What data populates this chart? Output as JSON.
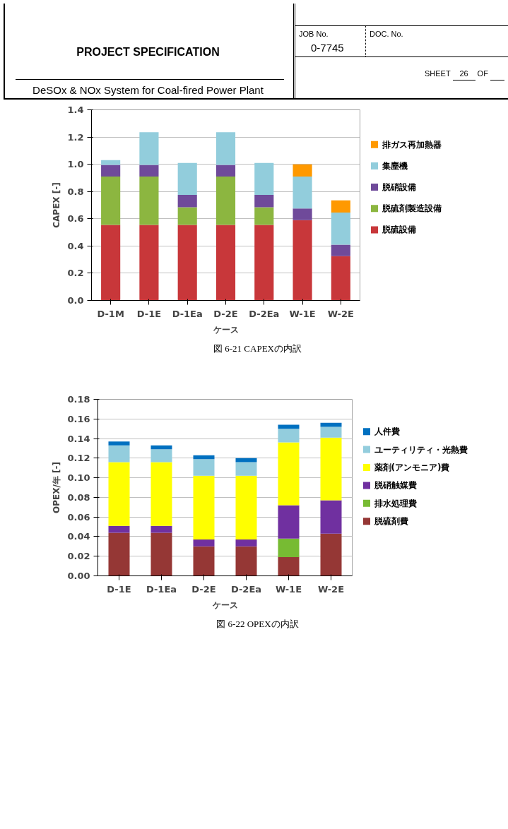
{
  "chart_data": [
    {
      "type": "bar",
      "stacked": true,
      "xlabel": "ケース",
      "ylabel": "CAPEX [-]",
      "categories": [
        "D-1M",
        "D-1E",
        "D-1Ea",
        "D-2E",
        "D-2Ea",
        "W-1E",
        "W-2E"
      ],
      "series": [
        {
          "name": "脱硫設備",
          "color": "#c8373a",
          "values": [
            0.555,
            0.555,
            0.555,
            0.555,
            0.555,
            0.59,
            0.325
          ]
        },
        {
          "name": "脱硫剤製造設備",
          "color": "#8cb640",
          "values": [
            0.355,
            0.355,
            0.13,
            0.355,
            0.13,
            null,
            null
          ]
        },
        {
          "name": "脱硝設備",
          "color": "#6f4a9a",
          "values": [
            0.085,
            0.085,
            0.09,
            0.085,
            0.09,
            0.085,
            0.085
          ]
        },
        {
          "name": "集塵機",
          "color": "#92cddc",
          "values": [
            0.035,
            0.24,
            0.235,
            0.24,
            0.235,
            0.235,
            0.235
          ]
        },
        {
          "name": "排ガス再加熱器",
          "color": "#ff9900",
          "values": [
            null,
            null,
            null,
            null,
            null,
            0.09,
            0.09
          ]
        }
      ],
      "ylim": [
        0,
        1.4
      ],
      "yticks": [
        {
          "value": 0,
          "label": "0.0"
        },
        0.2,
        0.4,
        0.6,
        0.8,
        {
          "value": 1,
          "label": "1.0"
        },
        1.2,
        1.4
      ],
      "grid": "y",
      "legend": "right",
      "annotations": [
        "PROJECT SPECIFICATION",
        "DeSOx & NOx System for Coal-fired Power Plant",
        "JOB No.",
        "0-7745",
        "DOC. No.",
        "SHEET",
        "26",
        "OF",
        "図 6-21 CAPEXの内訳"
      ]
    },
    {
      "type": "bar",
      "stacked": true,
      "xlabel": "ケース",
      "ylabel": "OPEX/年 [-]",
      "categories": [
        "D-1E",
        "D-1Ea",
        "D-2E",
        "D-2Ea",
        "W-1E",
        "W-2E"
      ],
      "series": [
        {
          "name": "脱硫剤費",
          "color": "#953735",
          "values": [
            0.044,
            0.044,
            0.03,
            0.03,
            0.019,
            0.043
          ]
        },
        {
          "name": "排水処理費",
          "color": "#77bb33",
          "values": [
            null,
            null,
            null,
            null,
            0.019,
            null
          ]
        },
        {
          "name": "脱硝触媒費",
          "color": "#7030a0",
          "values": [
            0.007,
            0.007,
            0.007,
            0.007,
            0.034,
            0.034
          ]
        },
        {
          "name": "薬剤(アンモニア)費",
          "color": "#ffff00",
          "values": [
            0.065,
            0.065,
            0.065,
            0.065,
            0.064,
            0.064
          ]
        },
        {
          "name": "ユーティリティ・光熱費",
          "color": "#93cddd",
          "values": [
            0.017,
            0.013,
            0.017,
            0.014,
            0.014,
            0.011
          ]
        },
        {
          "name": "人件費",
          "color": "#0070c0",
          "values": [
            0.004,
            0.004,
            0.004,
            0.004,
            0.004,
            0.004
          ]
        }
      ],
      "ylim": [
        0,
        0.18
      ],
      "yticks": [
        {
          "value": 0,
          "label": "0.00"
        },
        {
          "value": 0.02,
          "label": "0.02"
        },
        {
          "value": 0.04,
          "label": "0.04"
        },
        {
          "value": 0.06,
          "label": "0.06"
        },
        {
          "value": 0.08,
          "label": "0.08"
        },
        {
          "value": 0.1,
          "label": "0.10"
        },
        {
          "value": 0.12,
          "label": "0.12"
        },
        {
          "value": 0.14,
          "label": "0.14"
        },
        {
          "value": 0.16,
          "label": "0.16"
        },
        {
          "value": 0.18,
          "label": "0.18"
        }
      ],
      "grid": "y",
      "legend": "right",
      "annotations": [
        "図 6-22 OPEXの内訳"
      ]
    }
  ]
}
